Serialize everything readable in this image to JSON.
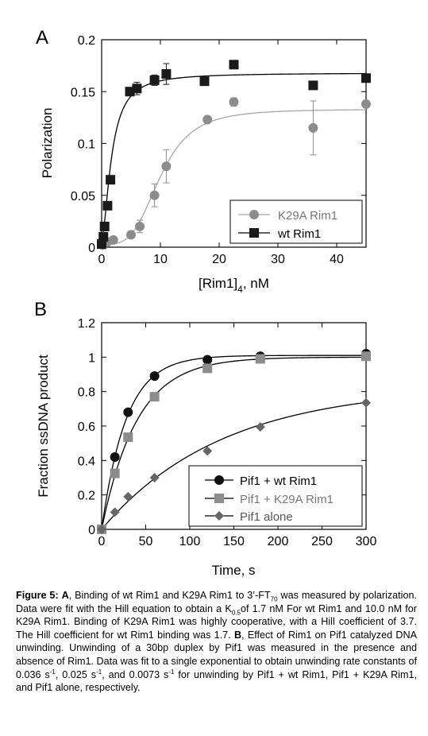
{
  "chart_data": [
    {
      "panel": "A",
      "type": "scatter",
      "xlabel_main": "[Rim1]",
      "xlabel_sub": "4",
      "xlabel_unit": ", nM",
      "ylabel": "Polarization",
      "xlim": [
        0,
        45
      ],
      "ylim": [
        0,
        0.2
      ],
      "xticks": [
        0,
        10,
        20,
        30,
        40
      ],
      "yticks": [
        0,
        0.05,
        0.1,
        0.15,
        0.2
      ],
      "ytick_labels": [
        "0",
        "0.05",
        "0.1",
        "0.15",
        "0.2"
      ],
      "legend_position": "bottom-right",
      "grid": false,
      "series": [
        {
          "name": "K29A Rim1",
          "marker": "circle",
          "color": "#8c8c8c",
          "line_color": "#a6a6a6",
          "fit": {
            "model": "hill",
            "base": 0.003,
            "top": 0.133,
            "k": 10.0,
            "n": 3.7
          },
          "points": [
            {
              "x": 0,
              "y": 0.005
            },
            {
              "x": 0.2,
              "y": 0.002
            },
            {
              "x": 1,
              "y": 0.005
            },
            {
              "x": 2,
              "y": 0.007
            },
            {
              "x": 5,
              "y": 0.012
            },
            {
              "x": 6.5,
              "y": 0.02,
              "err": 0.006
            },
            {
              "x": 9,
              "y": 0.05,
              "err": 0.011
            },
            {
              "x": 11,
              "y": 0.078,
              "err": 0.016
            },
            {
              "x": 18,
              "y": 0.123
            },
            {
              "x": 22.5,
              "y": 0.14,
              "err": 0.004
            },
            {
              "x": 36,
              "y": 0.115,
              "err": 0.026
            },
            {
              "x": 45,
              "y": 0.138
            }
          ]
        },
        {
          "name": "wt Rim1",
          "marker": "square",
          "color": "#1a1a1a",
          "line_color": "#000000",
          "fit": {
            "model": "hill",
            "base": 0.006,
            "top": 0.168,
            "k": 1.7,
            "n": 1.7
          },
          "points": [
            {
              "x": 0,
              "y": 0.003
            },
            {
              "x": 0.3,
              "y": 0.01
            },
            {
              "x": 0.5,
              "y": 0.02
            },
            {
              "x": 1,
              "y": 0.04
            },
            {
              "x": 1.5,
              "y": 0.065
            },
            {
              "x": 4.8,
              "y": 0.15
            },
            {
              "x": 6,
              "y": 0.153,
              "err": 0.006
            },
            {
              "x": 9,
              "y": 0.161,
              "err": 0.005
            },
            {
              "x": 11,
              "y": 0.167,
              "err": 0.01
            },
            {
              "x": 17.5,
              "y": 0.16
            },
            {
              "x": 22.5,
              "y": 0.176
            },
            {
              "x": 36,
              "y": 0.156
            },
            {
              "x": 45,
              "y": 0.163
            }
          ]
        }
      ]
    },
    {
      "panel": "B",
      "type": "line",
      "xlabel": "Time, s",
      "ylabel": "Fraction  ssDNA product",
      "xlim": [
        0,
        300
      ],
      "ylim": [
        0,
        1.2
      ],
      "xticks": [
        0,
        50,
        100,
        150,
        200,
        250,
        300
      ],
      "yticks": [
        0,
        0.2,
        0.4,
        0.6,
        0.8,
        1,
        1.2
      ],
      "ytick_labels": [
        "0",
        "0.2",
        "0.4",
        "0.6",
        "0.8",
        "1",
        "1.2"
      ],
      "legend_position": "bottom-right",
      "grid": false,
      "series": [
        {
          "name": "Pif1 + wt Rim1",
          "marker": "circle",
          "color": "#111111",
          "line_color": "#000000",
          "fit": {
            "model": "exp",
            "amp": 1.01,
            "rate": 0.036
          },
          "points": [
            {
              "x": 0,
              "y": 0.0
            },
            {
              "x": 15,
              "y": 0.42
            },
            {
              "x": 30,
              "y": 0.68
            },
            {
              "x": 60,
              "y": 0.89
            },
            {
              "x": 120,
              "y": 0.985
            },
            {
              "x": 180,
              "y": 1.005
            },
            {
              "x": 300,
              "y": 1.02
            }
          ]
        },
        {
          "name": "Pif1 + K29A Rim1",
          "marker": "square",
          "color": "#8c8c8c",
          "line_color": "#000000",
          "fit": {
            "model": "exp",
            "amp": 1.0,
            "rate": 0.025
          },
          "points": [
            {
              "x": 0,
              "y": 0.0
            },
            {
              "x": 15,
              "y": 0.325
            },
            {
              "x": 30,
              "y": 0.535
            },
            {
              "x": 60,
              "y": 0.77
            },
            {
              "x": 120,
              "y": 0.935
            },
            {
              "x": 180,
              "y": 0.99
            },
            {
              "x": 300,
              "y": 1.005
            }
          ]
        },
        {
          "name": "Pif1 alone",
          "marker": "diamond",
          "color": "#666666",
          "line_color": "#000000",
          "fit": {
            "model": "exp",
            "amp": 0.83,
            "rate": 0.0073
          },
          "points": [
            {
              "x": 0,
              "y": 0.0
            },
            {
              "x": 15,
              "y": 0.1
            },
            {
              "x": 30,
              "y": 0.19
            },
            {
              "x": 60,
              "y": 0.3
            },
            {
              "x": 120,
              "y": 0.455
            },
            {
              "x": 180,
              "y": 0.595
            },
            {
              "x": 300,
              "y": 0.735
            }
          ]
        }
      ]
    }
  ],
  "caption": {
    "label": "Figure 5:",
    "p1": " ",
    "a_label": "A",
    "p2": ", Binding of wt Rim1 and K29A Rim1 to 3’-FT",
    "ft_sub": "70",
    "p3": " was measured by polarization.  Data were fit with the Hill equation to obtain a K",
    "k_sub": "0.5",
    "p4": "of  1.7 nM For wt Rim1 and 10.0 nM for K29A Rim1. Binding of K29A Rim1 was highly cooperative, with a Hill coefficient of 3.7.  The Hill coefficient for wt Rim1 binding was 1.7.  ",
    "b_label": "B",
    "p5": ", Effect of Rim1 on Pif1 catalyzed DNA unwinding.  Unwinding of a 30bp duplex by Pif1 was measured in the presence and absence of Rim1. Data was fit to a single exponential to obtain unwinding rate constants of 0.036 s",
    "sup1": "-1",
    "p6": ", 0.025 s",
    "sup2": "-1",
    "p7": ", and 0.0073  s",
    "sup3": "-1",
    "p8": " for unwinding by Pif1 + wt Rim1, Pif1 + K29A Rim1, and Pif1 alone, respectively."
  }
}
